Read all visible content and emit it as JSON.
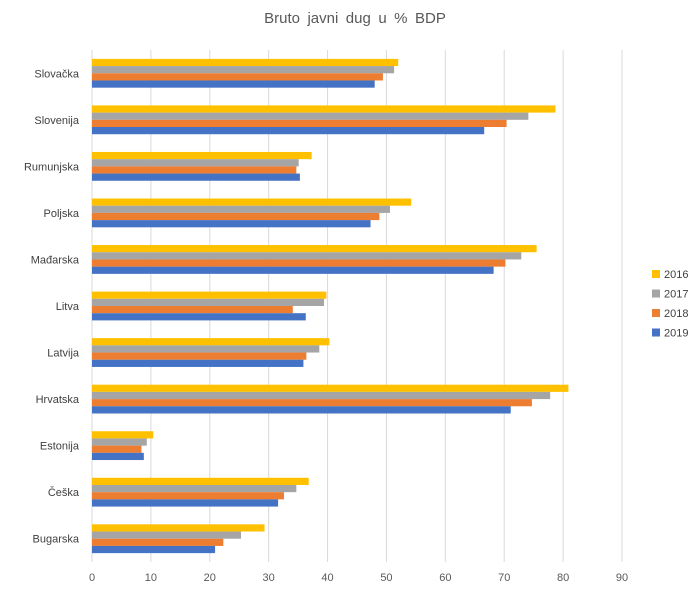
{
  "chart_data": {
    "type": "bar",
    "orientation": "horizontal",
    "title": "Bruto javni dug u % BDP",
    "categories": [
      "Slovačka",
      "Slovenija",
      "Rumunjska",
      "Poljska",
      "Mađarska",
      "Litva",
      "Latvija",
      "Hrvatska",
      "Estonija",
      "Češka",
      "Bugarska"
    ],
    "series": [
      {
        "name": "2016",
        "color": "#FFC000",
        "values": [
          52.0,
          78.7,
          37.3,
          54.2,
          75.5,
          39.8,
          40.3,
          80.9,
          10.4,
          36.8,
          29.3
        ]
      },
      {
        "name": "2017",
        "color": "#A5A5A5",
        "values": [
          51.3,
          74.1,
          35.1,
          50.6,
          72.9,
          39.4,
          38.6,
          77.8,
          9.3,
          34.7,
          25.3
        ]
      },
      {
        "name": "2018",
        "color": "#ED7D31",
        "values": [
          49.4,
          70.4,
          34.7,
          48.8,
          70.2,
          34.1,
          36.4,
          74.7,
          8.4,
          32.6,
          22.3
        ]
      },
      {
        "name": "2019",
        "color": "#4472C4",
        "values": [
          48.0,
          66.6,
          35.3,
          47.3,
          68.2,
          36.3,
          35.9,
          71.1,
          8.8,
          31.6,
          20.9
        ]
      }
    ],
    "x_ticks": [
      "0",
      "10",
      "20",
      "30",
      "40",
      "50",
      "60",
      "70",
      "80",
      "90"
    ],
    "xlim": [
      0,
      90
    ],
    "legend": {
      "placement": "right",
      "entries": [
        "2016",
        "2017",
        "2018",
        "2019"
      ]
    },
    "grid": true
  }
}
